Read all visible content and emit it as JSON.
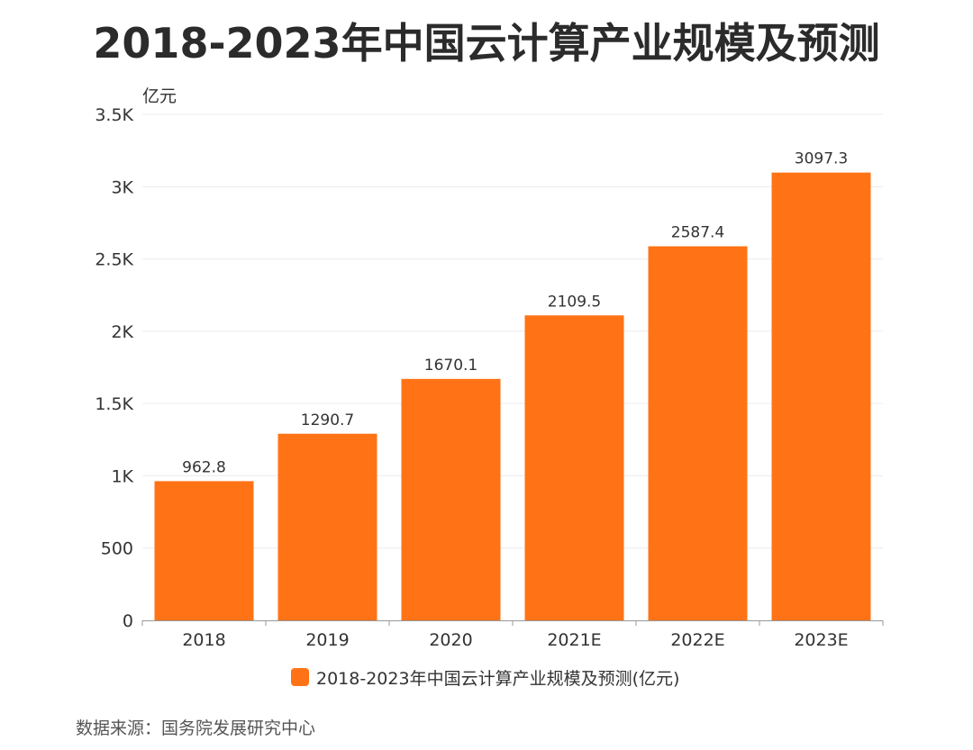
{
  "chart_data": {
    "type": "bar",
    "title": "2018-2023年中国云计算产业规模及预测",
    "unit_label": "亿元",
    "categories": [
      "2018",
      "2019",
      "2020",
      "2021E",
      "2022E",
      "2023E"
    ],
    "values": [
      962.8,
      1290.7,
      1670.1,
      2109.5,
      2587.4,
      3097.3
    ],
    "value_labels": [
      "962.8",
      "1290.7",
      "1670.1",
      "2109.5",
      "2587.4",
      "3097.3"
    ],
    "y_ticks": [
      0,
      500,
      1000,
      1500,
      2000,
      2500,
      3000,
      3500
    ],
    "y_tick_labels": [
      "0",
      "500",
      "1K",
      "1.5K",
      "2K",
      "2.5K",
      "3K",
      "3.5K"
    ],
    "ylim": [
      0,
      3500
    ],
    "grid": true,
    "legend": "bottom",
    "series": [
      {
        "name": "2018-2023年中国云计算产业规模及预测(亿元)",
        "values": [
          962.8,
          1290.7,
          1670.1,
          2109.5,
          2587.4,
          3097.3
        ]
      }
    ],
    "bar_color": "#FF7316",
    "grid_color": "#ececec",
    "axis_color": "#999999"
  },
  "legend": {
    "label": "2018-2023年中国云计算产业规模及预测(亿元)"
  },
  "source": {
    "text": "数据来源：国务院发展研究中心"
  }
}
